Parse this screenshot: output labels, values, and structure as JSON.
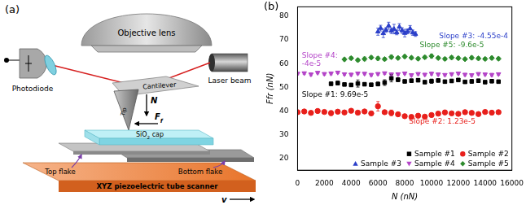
{
  "diagram": {
    "title": "(a)",
    "objective_lens": "Objective lens",
    "photodiode": "Photodiode",
    "laser": "Laser beam",
    "cantilever": "Cantilever",
    "tip": "Tip",
    "normal_force": "N",
    "friction_force": {
      "text": "F",
      "subscript": "f"
    },
    "cap": {
      "text": "SiO",
      "subscript": "2",
      "suffix": " cap"
    },
    "top_flake": "Top flake",
    "bottom_flake": "Bottom flake",
    "scanner": "XYZ piezoelectric tube scanner",
    "velocity": "v"
  },
  "chart_data": {
    "type": "scatter",
    "title": "(b)",
    "x_label": "N (nN)",
    "y_label": "Ffr (nN)",
    "xlim": [
      0,
      16000
    ],
    "xticks": [
      0,
      2000,
      4000,
      6000,
      8000,
      10000,
      12000,
      14000,
      16000
    ],
    "ylim": [
      15,
      84
    ],
    "yticks": [
      20,
      30,
      40,
      50,
      60,
      70,
      80
    ],
    "grid": false,
    "legend": "lower right",
    "series": [
      {
        "name": "Sample #1",
        "color": "#000000",
        "marker": "square",
        "x": [
          2500,
          3000,
          3500,
          4000,
          4500,
          5000,
          5500,
          6000,
          6500,
          7000,
          7500,
          8000,
          8500,
          9000,
          9500,
          10000,
          10500,
          11000,
          11500,
          12000,
          12500,
          13000,
          13500,
          14000,
          14500,
          15000
        ],
        "values": [
          51.5,
          51.8,
          51.2,
          51.0,
          51.6,
          51.3,
          51.1,
          51.4,
          52.0,
          53.8,
          53.2,
          52.5,
          52.8,
          53.0,
          52.2,
          52.6,
          52.9,
          52.4,
          52.7,
          53.1,
          52.3,
          52.5,
          52.8,
          52.2,
          52.6,
          52.4
        ],
        "errors": [
          0.6,
          0.8,
          0.6,
          0.7,
          1.5,
          0.6,
          0.6,
          0.8,
          1.2,
          1.5,
          0.8,
          0.6,
          0.7,
          0.6,
          0.6,
          0.9,
          0.6,
          0.6,
          0.7,
          0.6,
          0.6,
          0.8,
          0.6,
          0.6,
          0.7,
          0.6
        ]
      },
      {
        "name": "Sample #2",
        "color": "#e8201c",
        "marker": "circle",
        "x": [
          0,
          500,
          1000,
          1500,
          2000,
          2500,
          3000,
          3500,
          4000,
          4500,
          5000,
          5500,
          6000,
          6500,
          7000,
          7500,
          8000,
          8500,
          9000,
          9500,
          10000,
          10500,
          11000,
          11500,
          12000,
          12500,
          13000,
          13500,
          14000,
          14500,
          15000
        ],
        "values": [
          39.5,
          39.8,
          39.2,
          40.0,
          39.6,
          39.1,
          39.7,
          39.4,
          40.1,
          39.3,
          39.8,
          39.0,
          42.0,
          39.5,
          39.2,
          38.6,
          37.8,
          37.5,
          38.0,
          37.6,
          38.3,
          38.9,
          39.4,
          39.0,
          38.8,
          39.5,
          39.2,
          38.7,
          39.6,
          39.3,
          39.5
        ],
        "errors": [
          0.5,
          0.6,
          0.5,
          0.7,
          0.5,
          1.0,
          0.6,
          0.5,
          0.8,
          0.5,
          0.6,
          0.5,
          2.0,
          0.8,
          1.2,
          0.6,
          0.8,
          0.5,
          0.6,
          0.5,
          0.6,
          0.5,
          0.7,
          0.5,
          0.6,
          0.5,
          0.6,
          0.5,
          0.6,
          0.5,
          0.6
        ]
      },
      {
        "name": "Sample #3",
        "color": "#2b3fc9",
        "marker": "triangle-up",
        "x": [
          6000,
          6200,
          6400,
          6600,
          6800,
          7000,
          7200,
          7400,
          7600,
          7800,
          8000,
          8200,
          8400,
          8600,
          8800
        ],
        "values": [
          73.5,
          75.0,
          72.8,
          74.2,
          76.0,
          73.9,
          74.6,
          73.2,
          75.5,
          74.0,
          72.9,
          73.6,
          74.8,
          73.1,
          72.5
        ],
        "errors": [
          1.5,
          1.2,
          1.8,
          1.0,
          1.5,
          1.2,
          2.0,
          1.0,
          1.4,
          1.2,
          1.6,
          1.0,
          1.3,
          1.1,
          1.0
        ]
      },
      {
        "name": "Sample #4",
        "color": "#b445c8",
        "marker": "triangle-down",
        "x": [
          0,
          500,
          1000,
          1500,
          2000,
          2500,
          3000,
          3500,
          4000,
          4500,
          5000,
          5500,
          6000,
          6500,
          7000,
          7500,
          8000,
          8500,
          9000,
          9500,
          10000,
          10500,
          11000,
          11500,
          12000,
          12500,
          13000,
          13500,
          14000,
          14500,
          15000
        ],
        "values": [
          55.8,
          56.0,
          55.5,
          56.2,
          55.7,
          55.9,
          56.3,
          55.6,
          55.4,
          55.9,
          55.8,
          55.3,
          55.7,
          56.0,
          55.5,
          55.6,
          55.9,
          55.2,
          55.7,
          55.4,
          55.8,
          55.5,
          55.3,
          55.6,
          55.9,
          55.4,
          55.2,
          55.7,
          55.5,
          55.3,
          55.6
        ],
        "errors": [
          0.5,
          0.5,
          0.6,
          0.5,
          0.5,
          0.6,
          0.5,
          0.5,
          0.6,
          0.5,
          0.5,
          0.6,
          0.5,
          0.5,
          0.6,
          0.5,
          0.5,
          0.6,
          0.5,
          0.5,
          0.6,
          0.5,
          0.5,
          0.6,
          0.5,
          0.5,
          0.6,
          0.5,
          0.5,
          0.6,
          0.5
        ]
      },
      {
        "name": "Sample #5",
        "color": "#2e8b2e",
        "marker": "diamond",
        "x": [
          3500,
          4000,
          4500,
          5000,
          5500,
          6000,
          6500,
          7000,
          7500,
          8000,
          8500,
          9000,
          9500,
          10000,
          10500,
          11000,
          11500,
          12000,
          12500,
          13000,
          13500,
          14000,
          14500,
          15000
        ],
        "values": [
          61.8,
          62.3,
          61.5,
          62.0,
          62.6,
          62.2,
          61.9,
          62.8,
          62.4,
          63.0,
          62.5,
          62.1,
          62.7,
          63.2,
          62.4,
          62.0,
          62.6,
          62.3,
          61.9,
          62.5,
          62.2,
          62.0,
          62.4,
          62.1
        ],
        "errors": [
          0.6,
          0.7,
          0.6,
          0.8,
          0.6,
          0.7,
          0.6,
          0.8,
          0.6,
          0.7,
          0.6,
          0.6,
          0.7,
          0.8,
          0.6,
          0.6,
          0.7,
          0.6,
          0.6,
          0.7,
          0.6,
          0.6,
          0.7,
          0.6
        ]
      }
    ],
    "annotations": [
      {
        "lines": [
          "Slope #1: 9.69e-5"
        ],
        "color": "#000000"
      },
      {
        "lines": [
          "Slope #2: 1.23e-5"
        ],
        "color": "#e8201c"
      },
      {
        "lines": [
          "Slope #3: -4.55e-4"
        ],
        "color": "#2b3fc9"
      },
      {
        "lines": [
          "Slope #4:",
          "-4e-5"
        ],
        "color": "#b445c8"
      },
      {
        "lines": [
          "Slope #5: -9.6e-5"
        ],
        "color": "#2e8b2e"
      }
    ]
  }
}
